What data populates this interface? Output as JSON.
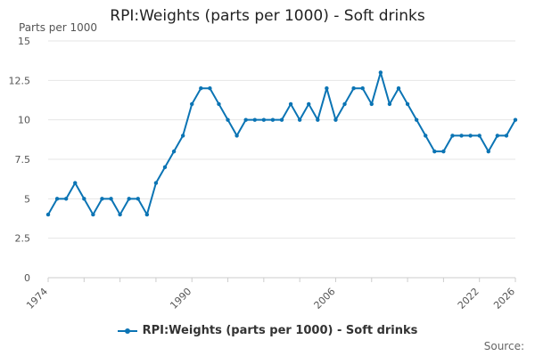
{
  "chart_data": {
    "type": "line",
    "title": "RPI:Weights (parts per 1000) - Soft drinks",
    "ylabel": "Parts per 1000",
    "xlabel": "",
    "ylim": [
      0,
      15
    ],
    "yticks": [
      "0",
      "2.5",
      "5",
      "7.5",
      "10",
      "12.5",
      "15"
    ],
    "xlim": [
      1974,
      2026
    ],
    "xticks": [
      "1974",
      "1990",
      "2006",
      "2022",
      "2026"
    ],
    "series": [
      {
        "name": "RPI:Weights (parts per 1000) - Soft drinks",
        "color": "#0b74b4",
        "x": [
          1974,
          1975,
          1976,
          1977,
          1978,
          1979,
          1980,
          1981,
          1982,
          1983,
          1984,
          1985,
          1986,
          1987,
          1988,
          1989,
          1990,
          1991,
          1992,
          1993,
          1994,
          1995,
          1996,
          1997,
          1998,
          1999,
          2000,
          2001,
          2002,
          2003,
          2004,
          2005,
          2006,
          2007,
          2008,
          2009,
          2010,
          2011,
          2012,
          2013,
          2014,
          2015,
          2016,
          2017,
          2018,
          2019,
          2020,
          2021,
          2022,
          2023,
          2024,
          2025,
          2026
        ],
        "values": [
          4,
          5,
          5,
          6,
          5,
          4,
          5,
          5,
          4,
          5,
          5,
          4,
          6,
          7,
          8,
          9,
          11,
          12,
          12,
          11,
          10,
          9,
          10,
          10,
          10,
          10,
          10,
          11,
          10,
          11,
          10,
          12,
          10,
          11,
          12,
          12,
          11,
          13,
          11,
          12,
          11,
          10,
          9,
          8,
          8,
          9,
          9,
          9,
          9,
          8,
          9,
          9,
          10
        ]
      }
    ],
    "grid": true,
    "legend_position": "bottom-center"
  },
  "legend": {
    "label": "RPI:Weights (parts per 1000) - Soft drinks"
  },
  "source": {
    "label": "Source:"
  }
}
